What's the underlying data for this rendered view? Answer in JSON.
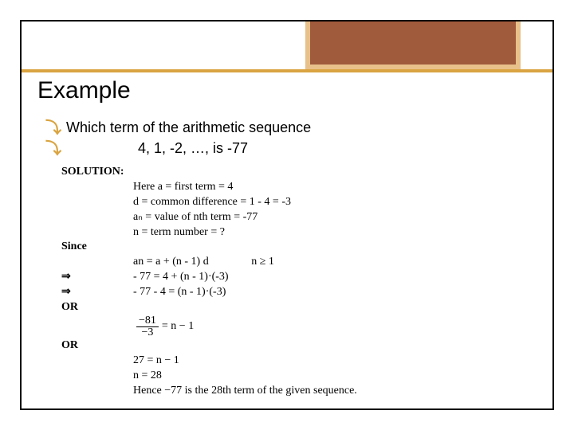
{
  "title": "Example",
  "question": {
    "line1": "Which term of the arithmetic sequence",
    "line2": "4, 1, -2, …,    is -77"
  },
  "solution": {
    "label": "SOLUTION:",
    "here": "Here a = first term = 4",
    "d": "d = common difference = 1 - 4 = -3",
    "an": "aₙ = value of nth term = -77",
    "n": "n = term number = ?",
    "since": "Since",
    "formula": "an = a + (n - 1) d",
    "cond": "n ≥ 1",
    "step1": "- 77 = 4 + (n - 1)·(-3)",
    "step2": "- 77 - 4 = (n - 1)·(-3)",
    "or1": "OR",
    "frac_num": "−81",
    "frac_den": "−3",
    "frac_rhs": "= n − 1",
    "or2": "OR",
    "step3": "27 = n − 1",
    "step4": "n = 28",
    "conclusion": "Hence −77 is the 28th term of the given sequence."
  },
  "colors": {
    "gold": "#d9a441",
    "brown": "#a05a3c",
    "tan_border": "#e8c08a"
  }
}
